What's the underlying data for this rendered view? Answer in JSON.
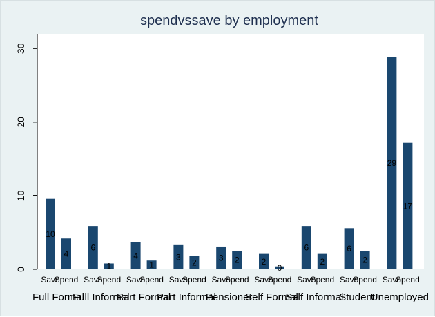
{
  "chart_data": {
    "type": "bar",
    "title": "spendvssave by employment",
    "xlabel": "",
    "ylabel": "",
    "ylim": [
      0,
      32
    ],
    "yticks": [
      0,
      10,
      20,
      30
    ],
    "grid": false,
    "groups": [
      {
        "name": "Full Formal",
        "bars": [
          {
            "label": "Save",
            "value": 9.6,
            "data_label": "10"
          },
          {
            "label": "Spend",
            "value": 4.2,
            "data_label": "4"
          }
        ]
      },
      {
        "name": "Full Informal",
        "bars": [
          {
            "label": "Save",
            "value": 5.9,
            "data_label": "6"
          },
          {
            "label": "Spend",
            "value": 0.8,
            "data_label": "1"
          }
        ]
      },
      {
        "name": "Part Formal",
        "bars": [
          {
            "label": "Save",
            "value": 3.7,
            "data_label": "4"
          },
          {
            "label": "Spend",
            "value": 1.2,
            "data_label": "1"
          }
        ]
      },
      {
        "name": "Part Informal",
        "bars": [
          {
            "label": "Save",
            "value": 3.3,
            "data_label": "3"
          },
          {
            "label": "Spend",
            "value": 1.8,
            "data_label": "2"
          }
        ]
      },
      {
        "name": "Pensioner",
        "bars": [
          {
            "label": "Save",
            "value": 3.1,
            "data_label": "3"
          },
          {
            "label": "Spend",
            "value": 2.5,
            "data_label": "2"
          }
        ]
      },
      {
        "name": "Self Formal",
        "bars": [
          {
            "label": "Save",
            "value": 2.1,
            "data_label": "2"
          },
          {
            "label": "Spend",
            "value": 0.4,
            "data_label": "0"
          }
        ]
      },
      {
        "name": "Self Informal",
        "bars": [
          {
            "label": "Save",
            "value": 5.9,
            "data_label": "6"
          },
          {
            "label": "Spend",
            "value": 2.1,
            "data_label": "2"
          }
        ]
      },
      {
        "name": "Student",
        "bars": [
          {
            "label": "Save",
            "value": 5.6,
            "data_label": "6"
          },
          {
            "label": "Spend",
            "value": 2.5,
            "data_label": "2"
          }
        ]
      },
      {
        "name": "Unemployed",
        "bars": [
          {
            "label": "Save",
            "value": 28.9,
            "data_label": "29"
          },
          {
            "label": "Spend",
            "value": 17.2,
            "data_label": "17"
          }
        ]
      }
    ],
    "colors": {
      "bar": "#1a476f",
      "plot_bg": "#ffffff",
      "outer_bg": "#eaf2f3",
      "title": "#1e2f4f"
    }
  }
}
